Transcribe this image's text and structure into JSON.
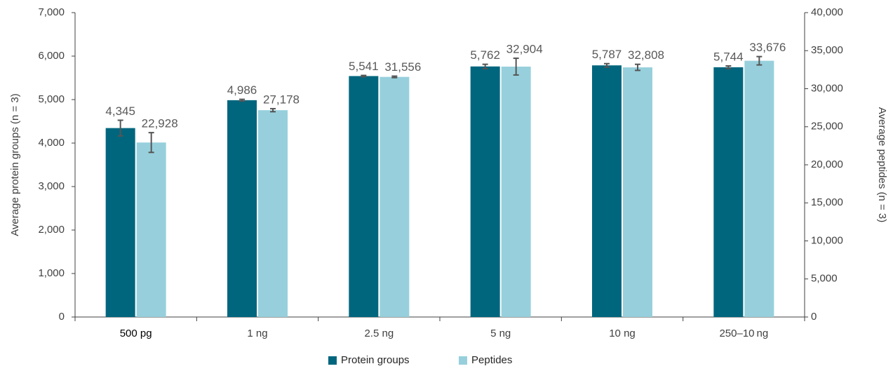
{
  "colors": {
    "protein_groups": "#00667e",
    "peptides": "#97d0dc",
    "axis": "#404040",
    "error_bar": "#555555",
    "label": "#595959"
  },
  "chart_data": {
    "type": "bar",
    "categories": [
      "500 pg",
      "1 ng",
      "2.5 ng",
      "5 ng",
      "10 ng",
      "250–10 ng"
    ],
    "series": [
      {
        "name": "Protein groups",
        "axis": "left",
        "values": [
          4345,
          4986,
          5541,
          5762,
          5787,
          5744
        ],
        "labels": [
          "4,345",
          "4,986",
          "5,541",
          "5,762",
          "5,787",
          "5,744"
        ],
        "error": [
          180,
          20,
          15,
          50,
          40,
          30
        ]
      },
      {
        "name": "Peptides",
        "axis": "right",
        "values": [
          22928,
          27178,
          31556,
          32904,
          32808,
          33676
        ],
        "labels": [
          "22,928",
          "27,178",
          "31,556",
          "32,904",
          "32,808",
          "33,676"
        ],
        "error": [
          1300,
          200,
          100,
          1100,
          400,
          550
        ]
      }
    ],
    "ylabel": "Average protein groups (n = 3)",
    "y2label": "Average peptides (n = 3)",
    "ylim": [
      0,
      7000
    ],
    "y2lim": [
      0,
      40000
    ],
    "yticks": [
      "0",
      "1,000",
      "2,000",
      "3,000",
      "4,000",
      "5,000",
      "6,000",
      "7,000"
    ],
    "y2ticks": [
      "0",
      "5,000",
      "10,000",
      "15,000",
      "20,000",
      "25,000",
      "30,000",
      "35,000",
      "40,000"
    ],
    "grid": false,
    "legend": "bottom-center"
  }
}
